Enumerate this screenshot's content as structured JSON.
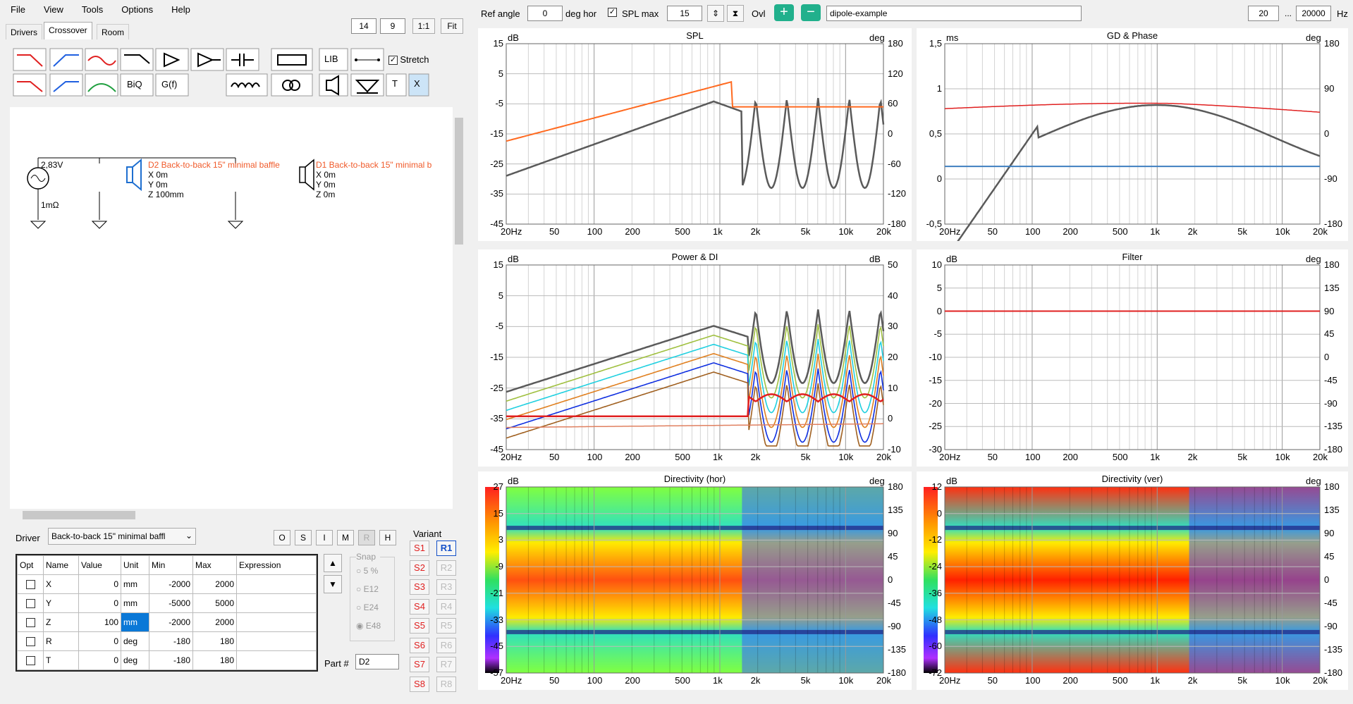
{
  "menu": [
    "File",
    "View",
    "Tools",
    "Options",
    "Help"
  ],
  "tabs": [
    "Drivers",
    "Crossover",
    "Room"
  ],
  "topright_boxes": [
    "14",
    "9",
    "1:1",
    "Fit"
  ],
  "tool_lib": "LIB",
  "tool_biq": "BiQ",
  "tool_gf": "G(f)",
  "tool_t": "T",
  "tool_x": "X",
  "stretch_label": "Stretch",
  "schematic": {
    "voltage": "2,83V",
    "resistance": "1mΩ",
    "d2_name": "D2 Back-to-back 15\" minimal baffle",
    "d2_x": "X 0m",
    "d2_y": "Y 0m",
    "d2_z": "Z 100mm",
    "d1_name": "D1 Back-to-back 15\" minimal b",
    "d1_x": "X 0m",
    "d1_y": "Y 0m",
    "d1_z": "Z 0m"
  },
  "driver_label": "Driver",
  "driver_value": "Back-to-back 15\" minimal baffl",
  "mode_buttons": [
    "O",
    "S",
    "I",
    "M",
    "R",
    "H"
  ],
  "variant_label": "Variant",
  "variants_s": [
    "S1",
    "S2",
    "S3",
    "S4",
    "S5",
    "S6",
    "S7",
    "S8"
  ],
  "variants_r": [
    "R1",
    "R2",
    "R3",
    "R4",
    "R5",
    "R6",
    "R7",
    "R8"
  ],
  "param_headers": [
    "Opt",
    "Name",
    "Value",
    "Unit",
    "Min",
    "Max",
    "Expression"
  ],
  "params": [
    {
      "name": "X",
      "value": "0",
      "unit": "mm",
      "min": "-2000",
      "max": "2000"
    },
    {
      "name": "Y",
      "value": "0",
      "unit": "mm",
      "min": "-5000",
      "max": "5000"
    },
    {
      "name": "Z",
      "value": "100",
      "unit": "mm",
      "min": "-2000",
      "max": "2000"
    },
    {
      "name": "R",
      "value": "0",
      "unit": "deg",
      "min": "-180",
      "max": "180"
    },
    {
      "name": "T",
      "value": "0",
      "unit": "deg",
      "min": "-180",
      "max": "180"
    }
  ],
  "snap_label": "Snap",
  "snap_options": [
    "5 %",
    "E12",
    "E24",
    "E48"
  ],
  "part_label": "Part #",
  "part_value": "D2",
  "toolbar": {
    "ref_angle_label": "Ref angle",
    "ref_angle": "0",
    "deg_hor": "deg hor",
    "spl_max_label": "SPL max",
    "spl_max": "15",
    "ovl": "Ovl",
    "project": "dipole-example",
    "freq_min": "20",
    "dots": "...",
    "freq_max": "20000",
    "hz": "Hz"
  },
  "x_ticks": [
    "20Hz",
    "50",
    "100",
    "200",
    "500",
    "1k",
    "2k",
    "5k",
    "10k",
    "20k"
  ],
  "plots": {
    "spl": {
      "title": "SPL",
      "lunit": "dB",
      "runit": "deg",
      "left": [
        "15",
        "5",
        "-5",
        "-15",
        "-25",
        "-35",
        "-45"
      ],
      "right": [
        "180",
        "120",
        "60",
        "0",
        "-60",
        "-120",
        "-180"
      ]
    },
    "gd": {
      "title": "GD & Phase",
      "lunit": "ms",
      "runit": "deg",
      "left": [
        "1,5",
        "1",
        "0,5",
        "0",
        "-0,5"
      ],
      "right": [
        "180",
        "90",
        "0",
        "-90",
        "-180"
      ]
    },
    "pdi": {
      "title": "Power & DI",
      "lunit": "dB",
      "runit": "dB",
      "left": [
        "15",
        "5",
        "-5",
        "-15",
        "-25",
        "-35",
        "-45"
      ],
      "right": [
        "50",
        "40",
        "30",
        "20",
        "10",
        "0",
        "-10"
      ]
    },
    "filter": {
      "title": "Filter",
      "lunit": "dB",
      "runit": "deg",
      "left": [
        "10",
        "5",
        "0",
        "-5",
        "-10",
        "-15",
        "-20",
        "-25",
        "-30"
      ],
      "right": [
        "180",
        "135",
        "90",
        "45",
        "0",
        "-45",
        "-90",
        "-135",
        "-180"
      ]
    },
    "dirh": {
      "title": "Directivity (hor)",
      "lunit": "dB",
      "runit": "deg",
      "left": [
        "27",
        "15",
        "3",
        "-9",
        "-21",
        "-33",
        "-45",
        "-57"
      ],
      "right": [
        "180",
        "135",
        "90",
        "45",
        "0",
        "-45",
        "-90",
        "-135",
        "-180"
      ]
    },
    "dirv": {
      "title": "Directivity (ver)",
      "lunit": "dB",
      "runit": "deg",
      "left": [
        "12",
        "0",
        "-12",
        "-24",
        "-36",
        "-48",
        "-60",
        "-72"
      ],
      "right": [
        "180",
        "135",
        "90",
        "45",
        "0",
        "-45",
        "-90",
        "-135",
        "-180"
      ]
    }
  },
  "colors": {
    "dark": "#5a5a5a",
    "orange": "#ff6a20",
    "red": "#e02020",
    "blue": "#3f7fc0"
  }
}
